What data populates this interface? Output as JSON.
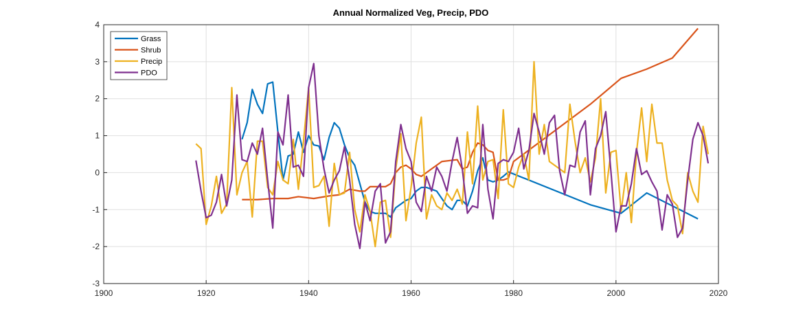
{
  "chart_data": {
    "type": "line",
    "title": "Annual Normalized Veg, Precip, PDO",
    "xlim": [
      1900,
      2020
    ],
    "xticks": [
      1900,
      1920,
      1940,
      1960,
      1980,
      2000,
      2020
    ],
    "ylim": [
      -3,
      4
    ],
    "yticks": [
      -3,
      -2,
      -1,
      0,
      1,
      2,
      3,
      4
    ],
    "grid": true,
    "legend": "upper left",
    "series": [
      {
        "name": "Grass",
        "color": "#0072BD",
        "x": [
          1927,
          1928,
          1929,
          1930,
          1931,
          1932,
          1933,
          1934,
          1935,
          1936,
          1937,
          1938,
          1939,
          1940,
          1941,
          1942,
          1943,
          1944,
          1945,
          1946,
          1947,
          1948,
          1949,
          1950,
          1951,
          1952,
          1953,
          1954,
          1955,
          1956,
          1957,
          1958,
          1959,
          1960,
          1961,
          1962,
          1963,
          1964,
          1965,
          1966,
          1967,
          1968,
          1969,
          1970,
          1971,
          1972,
          1973,
          1974,
          1975,
          1976,
          1977,
          1978,
          1979,
          1995,
          2001,
          2006,
          2016
        ],
        "values": [
          0.9,
          1.35,
          2.25,
          1.85,
          1.6,
          2.4,
          2.45,
          1.1,
          -0.2,
          0.45,
          0.5,
          1.1,
          0.55,
          1.0,
          0.75,
          0.72,
          0.35,
          0.95,
          1.35,
          1.2,
          0.75,
          0.4,
          0.2,
          -0.3,
          -0.8,
          -1.05,
          -1.1,
          -1.1,
          -1.1,
          -1.2,
          -0.95,
          -0.85,
          -0.75,
          -0.7,
          -0.5,
          -0.4,
          -0.4,
          -0.45,
          -0.5,
          -0.7,
          -0.9,
          -1.0,
          -0.75,
          -0.75,
          -0.9,
          -0.5,
          0.05,
          0.4,
          -0.2,
          -0.25,
          -0.2,
          -0.1,
          0.02,
          -0.87,
          -1.1,
          -0.55,
          -1.25
        ]
      },
      {
        "name": "Shrub",
        "color": "#D95319",
        "x": [
          1927,
          1930,
          1933,
          1936,
          1938,
          1941,
          1944,
          1946,
          1948,
          1950,
          1951,
          1952,
          1955,
          1956,
          1957,
          1958,
          1959,
          1960,
          1961,
          1962,
          1964,
          1966,
          1969,
          1970,
          1971,
          1972,
          1973,
          1974,
          1975,
          1976,
          1977,
          1978,
          1979,
          1980,
          1995,
          2001,
          2006,
          2011,
          2016
        ],
        "values": [
          -0.73,
          -0.73,
          -0.7,
          -0.7,
          -0.65,
          -0.7,
          -0.63,
          -0.6,
          -0.45,
          -0.5,
          -0.5,
          -0.38,
          -0.38,
          -0.3,
          0.0,
          0.15,
          0.2,
          0.1,
          -0.05,
          -0.1,
          0.1,
          0.3,
          0.35,
          0.1,
          0.15,
          0.55,
          0.8,
          0.75,
          0.6,
          0.55,
          -0.2,
          -0.2,
          -0.15,
          0.3,
          1.85,
          2.55,
          2.8,
          3.1,
          3.9
        ]
      },
      {
        "name": "Precip",
        "color": "#EDB120",
        "x": [
          1918,
          1919,
          1920,
          1921,
          1922,
          1923,
          1924,
          1925,
          1926,
          1927,
          1928,
          1929,
          1930,
          1931,
          1932,
          1933,
          1934,
          1935,
          1936,
          1937,
          1938,
          1939,
          1940,
          1941,
          1942,
          1943,
          1944,
          1945,
          1946,
          1947,
          1948,
          1949,
          1950,
          1951,
          1952,
          1953,
          1954,
          1955,
          1956,
          1957,
          1958,
          1959,
          1960,
          1961,
          1962,
          1963,
          1964,
          1965,
          1966,
          1967,
          1968,
          1969,
          1970,
          1971,
          1972,
          1973,
          1974,
          1975,
          1976,
          1977,
          1978,
          1979,
          1980,
          1981,
          1982,
          1983,
          1984,
          1985,
          1986,
          1987,
          1988,
          1989,
          1990,
          1991,
          1992,
          1993,
          1994,
          1995,
          1996,
          1997,
          1998,
          1999,
          2000,
          2001,
          2002,
          2003,
          2004,
          2005,
          2006,
          2007,
          2008,
          2009,
          2010,
          2011,
          2012,
          2013,
          2014,
          2015,
          2016,
          2017,
          2018
        ],
        "values": [
          0.78,
          0.65,
          -1.4,
          -0.9,
          -0.1,
          -1.1,
          -0.85,
          2.3,
          -0.6,
          0.0,
          0.3,
          -1.2,
          0.85,
          0.85,
          -0.4,
          -0.6,
          0.3,
          -0.2,
          -0.3,
          0.9,
          -0.45,
          0.85,
          2.3,
          -0.4,
          -0.35,
          -0.1,
          -1.45,
          0.25,
          -0.6,
          -0.55,
          0.55,
          -1.0,
          -1.6,
          -0.6,
          -1.05,
          -2.0,
          -0.8,
          -0.75,
          -1.75,
          0.1,
          1.05,
          -1.3,
          -0.4,
          0.8,
          1.5,
          -1.25,
          -0.6,
          -0.9,
          -1.0,
          -0.55,
          -0.75,
          -0.45,
          -0.85,
          1.1,
          -0.3,
          1.8,
          -0.2,
          0.3,
          0.35,
          -0.7,
          1.7,
          -0.3,
          -0.4,
          0.15,
          0.5,
          -0.2,
          3.0,
          0.5,
          1.3,
          0.3,
          0.2,
          0.1,
          0.0,
          1.85,
          0.85,
          0.0,
          0.4,
          -0.25,
          0.4,
          2.0,
          -0.55,
          0.55,
          0.6,
          -1.05,
          0.0,
          -1.35,
          0.55,
          1.75,
          0.3,
          1.85,
          0.8,
          0.8,
          -0.2,
          -0.75,
          -0.9,
          -1.65,
          0.0,
          -0.5,
          -0.8,
          1.25,
          0.5
        ]
      },
      {
        "name": "PDO",
        "color": "#7E2F8E",
        "x": [
          1918,
          1919,
          1920,
          1921,
          1922,
          1923,
          1924,
          1925,
          1926,
          1927,
          1928,
          1929,
          1930,
          1931,
          1932,
          1933,
          1934,
          1935,
          1936,
          1937,
          1938,
          1939,
          1940,
          1941,
          1942,
          1943,
          1944,
          1945,
          1946,
          1947,
          1948,
          1949,
          1950,
          1951,
          1952,
          1953,
          1954,
          1955,
          1956,
          1957,
          1958,
          1959,
          1960,
          1961,
          1962,
          1963,
          1964,
          1965,
          1966,
          1967,
          1968,
          1969,
          1970,
          1971,
          1972,
          1973,
          1974,
          1975,
          1976,
          1977,
          1978,
          1979,
          1980,
          1981,
          1982,
          1983,
          1984,
          1985,
          1986,
          1987,
          1988,
          1989,
          1990,
          1991,
          1992,
          1993,
          1994,
          1995,
          1996,
          1997,
          1998,
          1999,
          2000,
          2001,
          2002,
          2003,
          2004,
          2005,
          2006,
          2007,
          2008,
          2009,
          2010,
          2011,
          2012,
          2013,
          2014,
          2015,
          2016,
          2017,
          2018
        ],
        "values": [
          0.33,
          -0.5,
          -1.22,
          -1.15,
          -0.8,
          -0.05,
          -0.9,
          -0.2,
          2.1,
          0.35,
          0.3,
          0.8,
          0.5,
          1.2,
          -0.2,
          -1.5,
          1.1,
          0.75,
          2.1,
          0.15,
          0.2,
          -0.1,
          2.3,
          2.95,
          1.0,
          0.1,
          -0.55,
          -0.2,
          0.05,
          0.7,
          -0.2,
          -1.4,
          -2.05,
          -0.8,
          -1.3,
          -0.5,
          -0.3,
          -1.9,
          -1.6,
          0.3,
          1.3,
          0.65,
          0.3,
          -0.8,
          -1.05,
          -0.1,
          -0.5,
          0.15,
          -0.1,
          -0.5,
          0.3,
          0.95,
          0.1,
          -1.1,
          -0.9,
          -0.95,
          1.3,
          -0.45,
          -1.25,
          0.25,
          0.35,
          0.3,
          0.55,
          1.2,
          0.1,
          0.6,
          1.6,
          1.1,
          0.5,
          1.35,
          1.55,
          0.05,
          -0.6,
          0.2,
          0.15,
          1.1,
          1.4,
          -0.6,
          0.65,
          1.0,
          1.65,
          0.05,
          -1.6,
          -0.9,
          -0.9,
          -0.3,
          0.65,
          -0.05,
          0.05,
          -0.25,
          -0.5,
          -1.55,
          -0.6,
          -0.85,
          -1.75,
          -1.5,
          -0.2,
          0.9,
          1.35,
          1.0,
          0.25
        ]
      }
    ]
  }
}
